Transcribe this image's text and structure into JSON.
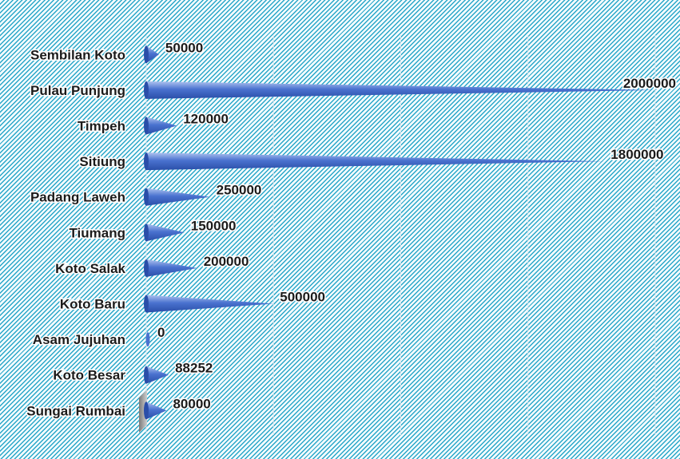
{
  "chart_data": {
    "type": "bar",
    "orientation": "horizontal",
    "bar_shape": "cone",
    "categories": [
      "Sembilan Koto",
      "Pulau Punjung",
      "Timpeh",
      "Sitiung",
      "Padang Laweh",
      "Tiumang",
      "Koto Salak",
      "Koto Baru",
      "Asam Jujuhan",
      "Koto Besar",
      "Sungai Rumbai"
    ],
    "values": [
      50000,
      2000000,
      120000,
      1800000,
      250000,
      150000,
      200000,
      500000,
      0,
      88252,
      80000
    ],
    "value_labels": [
      "50000",
      "2000000",
      "120000",
      "1800000",
      "250000",
      "150000",
      "200000",
      "500000",
      "0",
      "88252",
      "80000"
    ],
    "title": "",
    "xlabel": "",
    "ylabel": "",
    "xlim": [
      0,
      2000000
    ],
    "gridlines": [
      0,
      500000,
      1000000,
      1500000,
      2000000
    ],
    "grid": true,
    "legend": "none",
    "colors": {
      "bar_light": "#aec3ef",
      "bar_mid": "#4a72cf",
      "bar_dark": "#2a4ea8",
      "background_hatch": "#2aa7c9"
    }
  }
}
